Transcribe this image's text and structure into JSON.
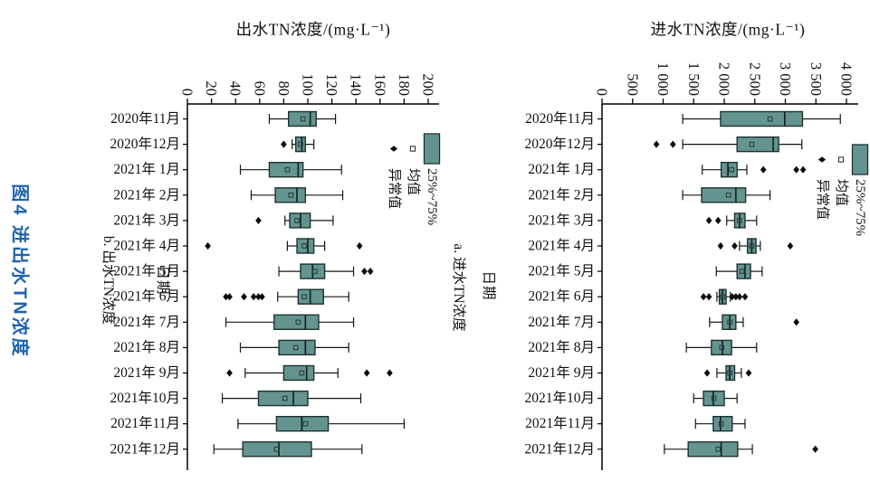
{
  "figure": {
    "caption": "图4 进出水TN浓度"
  },
  "colors": {
    "caption_blue": "#1e63ae",
    "box_fill": "#649490",
    "box_stroke": "#1c3331",
    "median_stroke": "#122525",
    "outlier_black": "#0b0b0b",
    "axis_black": "#000000"
  },
  "chart_data": [
    {
      "id": "effluent-tn",
      "type": "boxplot",
      "orientation": "horizontal",
      "panel_label": "b. 出水TN浓度",
      "title": "出水TN浓度/(mg·L⁻¹)",
      "category_axis_label": "日期",
      "xlim": [
        0,
        200
      ],
      "tick_values": [
        0,
        20,
        40,
        60,
        80,
        100,
        120,
        140,
        160,
        180,
        200
      ],
      "tick_labels": [
        "0",
        "20",
        "40",
        "60",
        "80",
        "100",
        "120",
        "140",
        "160",
        "180",
        "200"
      ],
      "legend": [
        "25%~75%",
        "均值",
        "异常值"
      ],
      "categories": [
        "2020年11月",
        "2020年12月",
        "2021年 1月",
        "2021年 2月",
        "2021年 3月",
        "2021年 4月",
        "2021年 5月",
        "2021年 6月",
        "2021年 7月",
        "2021年 8月",
        "2021年 9月",
        "2021年10月",
        "2021年11月",
        "2021年12月"
      ],
      "boxes": [
        {
          "low": 68,
          "q1": 84,
          "median": 102,
          "q3": 107,
          "high": 123,
          "mean": 96,
          "outliers": []
        },
        {
          "low": 87,
          "q1": 90,
          "median": 95,
          "q3": 98,
          "high": 105,
          "mean": 94,
          "outliers": [
            80
          ]
        },
        {
          "low": 44,
          "q1": 68,
          "median": 92,
          "q3": 96,
          "high": 128,
          "mean": 83,
          "outliers": []
        },
        {
          "low": 53,
          "q1": 73,
          "median": 91,
          "q3": 98,
          "high": 129,
          "mean": 86,
          "outliers": []
        },
        {
          "low": 81,
          "q1": 85,
          "median": 94,
          "q3": 102,
          "high": 121,
          "mean": 91,
          "outliers": [
            59
          ]
        },
        {
          "low": 83,
          "q1": 91,
          "median": 100,
          "q3": 105,
          "high": 114,
          "mean": 97,
          "outliers": [
            17,
            143
          ]
        },
        {
          "low": 76,
          "q1": 94,
          "median": 104,
          "q3": 114,
          "high": 138,
          "mean": 106,
          "outliers": [
            147,
            152
          ]
        },
        {
          "low": 75,
          "q1": 92,
          "median": 102,
          "q3": 113,
          "high": 134,
          "mean": 97,
          "outliers": [
            32,
            35,
            47,
            55,
            59,
            62
          ]
        },
        {
          "low": 32,
          "q1": 72,
          "median": 98,
          "q3": 109,
          "high": 138,
          "mean": 92,
          "outliers": []
        },
        {
          "low": 44,
          "q1": 76,
          "median": 98,
          "q3": 106,
          "high": 134,
          "mean": 90,
          "outliers": []
        },
        {
          "low": 48,
          "q1": 80,
          "median": 99,
          "q3": 105,
          "high": 125,
          "mean": 95,
          "outliers": [
            35,
            149,
            168
          ]
        },
        {
          "low": 29,
          "q1": 59,
          "median": 88,
          "q3": 100,
          "high": 144,
          "mean": 81,
          "outliers": []
        },
        {
          "low": 42,
          "q1": 74,
          "median": 95,
          "q3": 117,
          "high": 180,
          "mean": 98,
          "outliers": []
        },
        {
          "low": 22,
          "q1": 46,
          "median": 76,
          "q3": 103,
          "high": 145,
          "mean": 74,
          "outliers": []
        }
      ]
    },
    {
      "id": "influent-tn",
      "type": "boxplot",
      "orientation": "horizontal",
      "panel_label": "a. 进水TN浓度",
      "title": "进水TN浓度/(mg·L⁻¹)",
      "category_axis_label": "日期",
      "xlim": [
        0,
        4000
      ],
      "tick_values": [
        0,
        500,
        1000,
        1500,
        2000,
        2500,
        3000,
        3500,
        4000
      ],
      "tick_labels": [
        "0",
        "500",
        "1 000",
        "1 500",
        "2 000",
        "2 500",
        "3 000",
        "3 500",
        "4 000"
      ],
      "legend": [
        "25%~75%",
        "均值",
        "异常值"
      ],
      "categories": [
        "2020年11月",
        "2020年12月",
        "2021年 1月",
        "2021年 2月",
        "2021年 3月",
        "2021年 4月",
        "2021年 5月",
        "2021年 6月",
        "2021年 7月",
        "2021年 8月",
        "2021年 9月",
        "2021年10月",
        "2021年11月",
        "2021年12月"
      ],
      "boxes": [
        {
          "low": 1320,
          "q1": 1940,
          "median": 2990,
          "q3": 3280,
          "high": 3900,
          "mean": 2750,
          "outliers": []
        },
        {
          "low": 1320,
          "q1": 2210,
          "median": 2800,
          "q3": 2890,
          "high": 3270,
          "mean": 2450,
          "outliers": [
            890,
            1160
          ]
        },
        {
          "low": 1640,
          "q1": 1950,
          "median": 2060,
          "q3": 2210,
          "high": 2370,
          "mean": 2120,
          "outliers": [
            2640,
            3180,
            3290
          ]
        },
        {
          "low": 1320,
          "q1": 1630,
          "median": 2190,
          "q3": 2350,
          "high": 2750,
          "mean": 2070,
          "outliers": []
        },
        {
          "low": 2040,
          "q1": 2170,
          "median": 2250,
          "q3": 2340,
          "high": 2530,
          "mean": 2250,
          "outliers": [
            1750,
            1900
          ]
        },
        {
          "low": 2250,
          "q1": 2380,
          "median": 2450,
          "q3": 2520,
          "high": 2590,
          "mean": 2450,
          "outliers": [
            1940,
            2170,
            3080
          ]
        },
        {
          "low": 1870,
          "q1": 2210,
          "median": 2340,
          "q3": 2430,
          "high": 2620,
          "mean": 2290,
          "outliers": []
        },
        {
          "low": 1880,
          "q1": 1920,
          "median": 1970,
          "q3": 2030,
          "high": 2100,
          "mean": 1975,
          "outliers": [
            1660,
            1750,
            2130,
            2190,
            2250,
            2340
          ]
        },
        {
          "low": 1760,
          "q1": 1970,
          "median": 2090,
          "q3": 2190,
          "high": 2310,
          "mean": 2090,
          "outliers": [
            3180
          ]
        },
        {
          "low": 1380,
          "q1": 1790,
          "median": 1970,
          "q3": 2120,
          "high": 2530,
          "mean": 1960,
          "outliers": []
        },
        {
          "low": 1880,
          "q1": 2030,
          "median": 2090,
          "q3": 2170,
          "high": 2280,
          "mean": 2090,
          "outliers": [
            1720,
            2400
          ]
        },
        {
          "low": 1500,
          "q1": 1660,
          "median": 1820,
          "q3": 2000,
          "high": 2210,
          "mean": 1830,
          "outliers": []
        },
        {
          "low": 1530,
          "q1": 1820,
          "median": 1940,
          "q3": 2130,
          "high": 2340,
          "mean": 1950,
          "outliers": []
        },
        {
          "low": 1020,
          "q1": 1410,
          "median": 1950,
          "q3": 2220,
          "high": 2460,
          "mean": 1900,
          "outliers": [
            3490
          ]
        }
      ]
    }
  ]
}
